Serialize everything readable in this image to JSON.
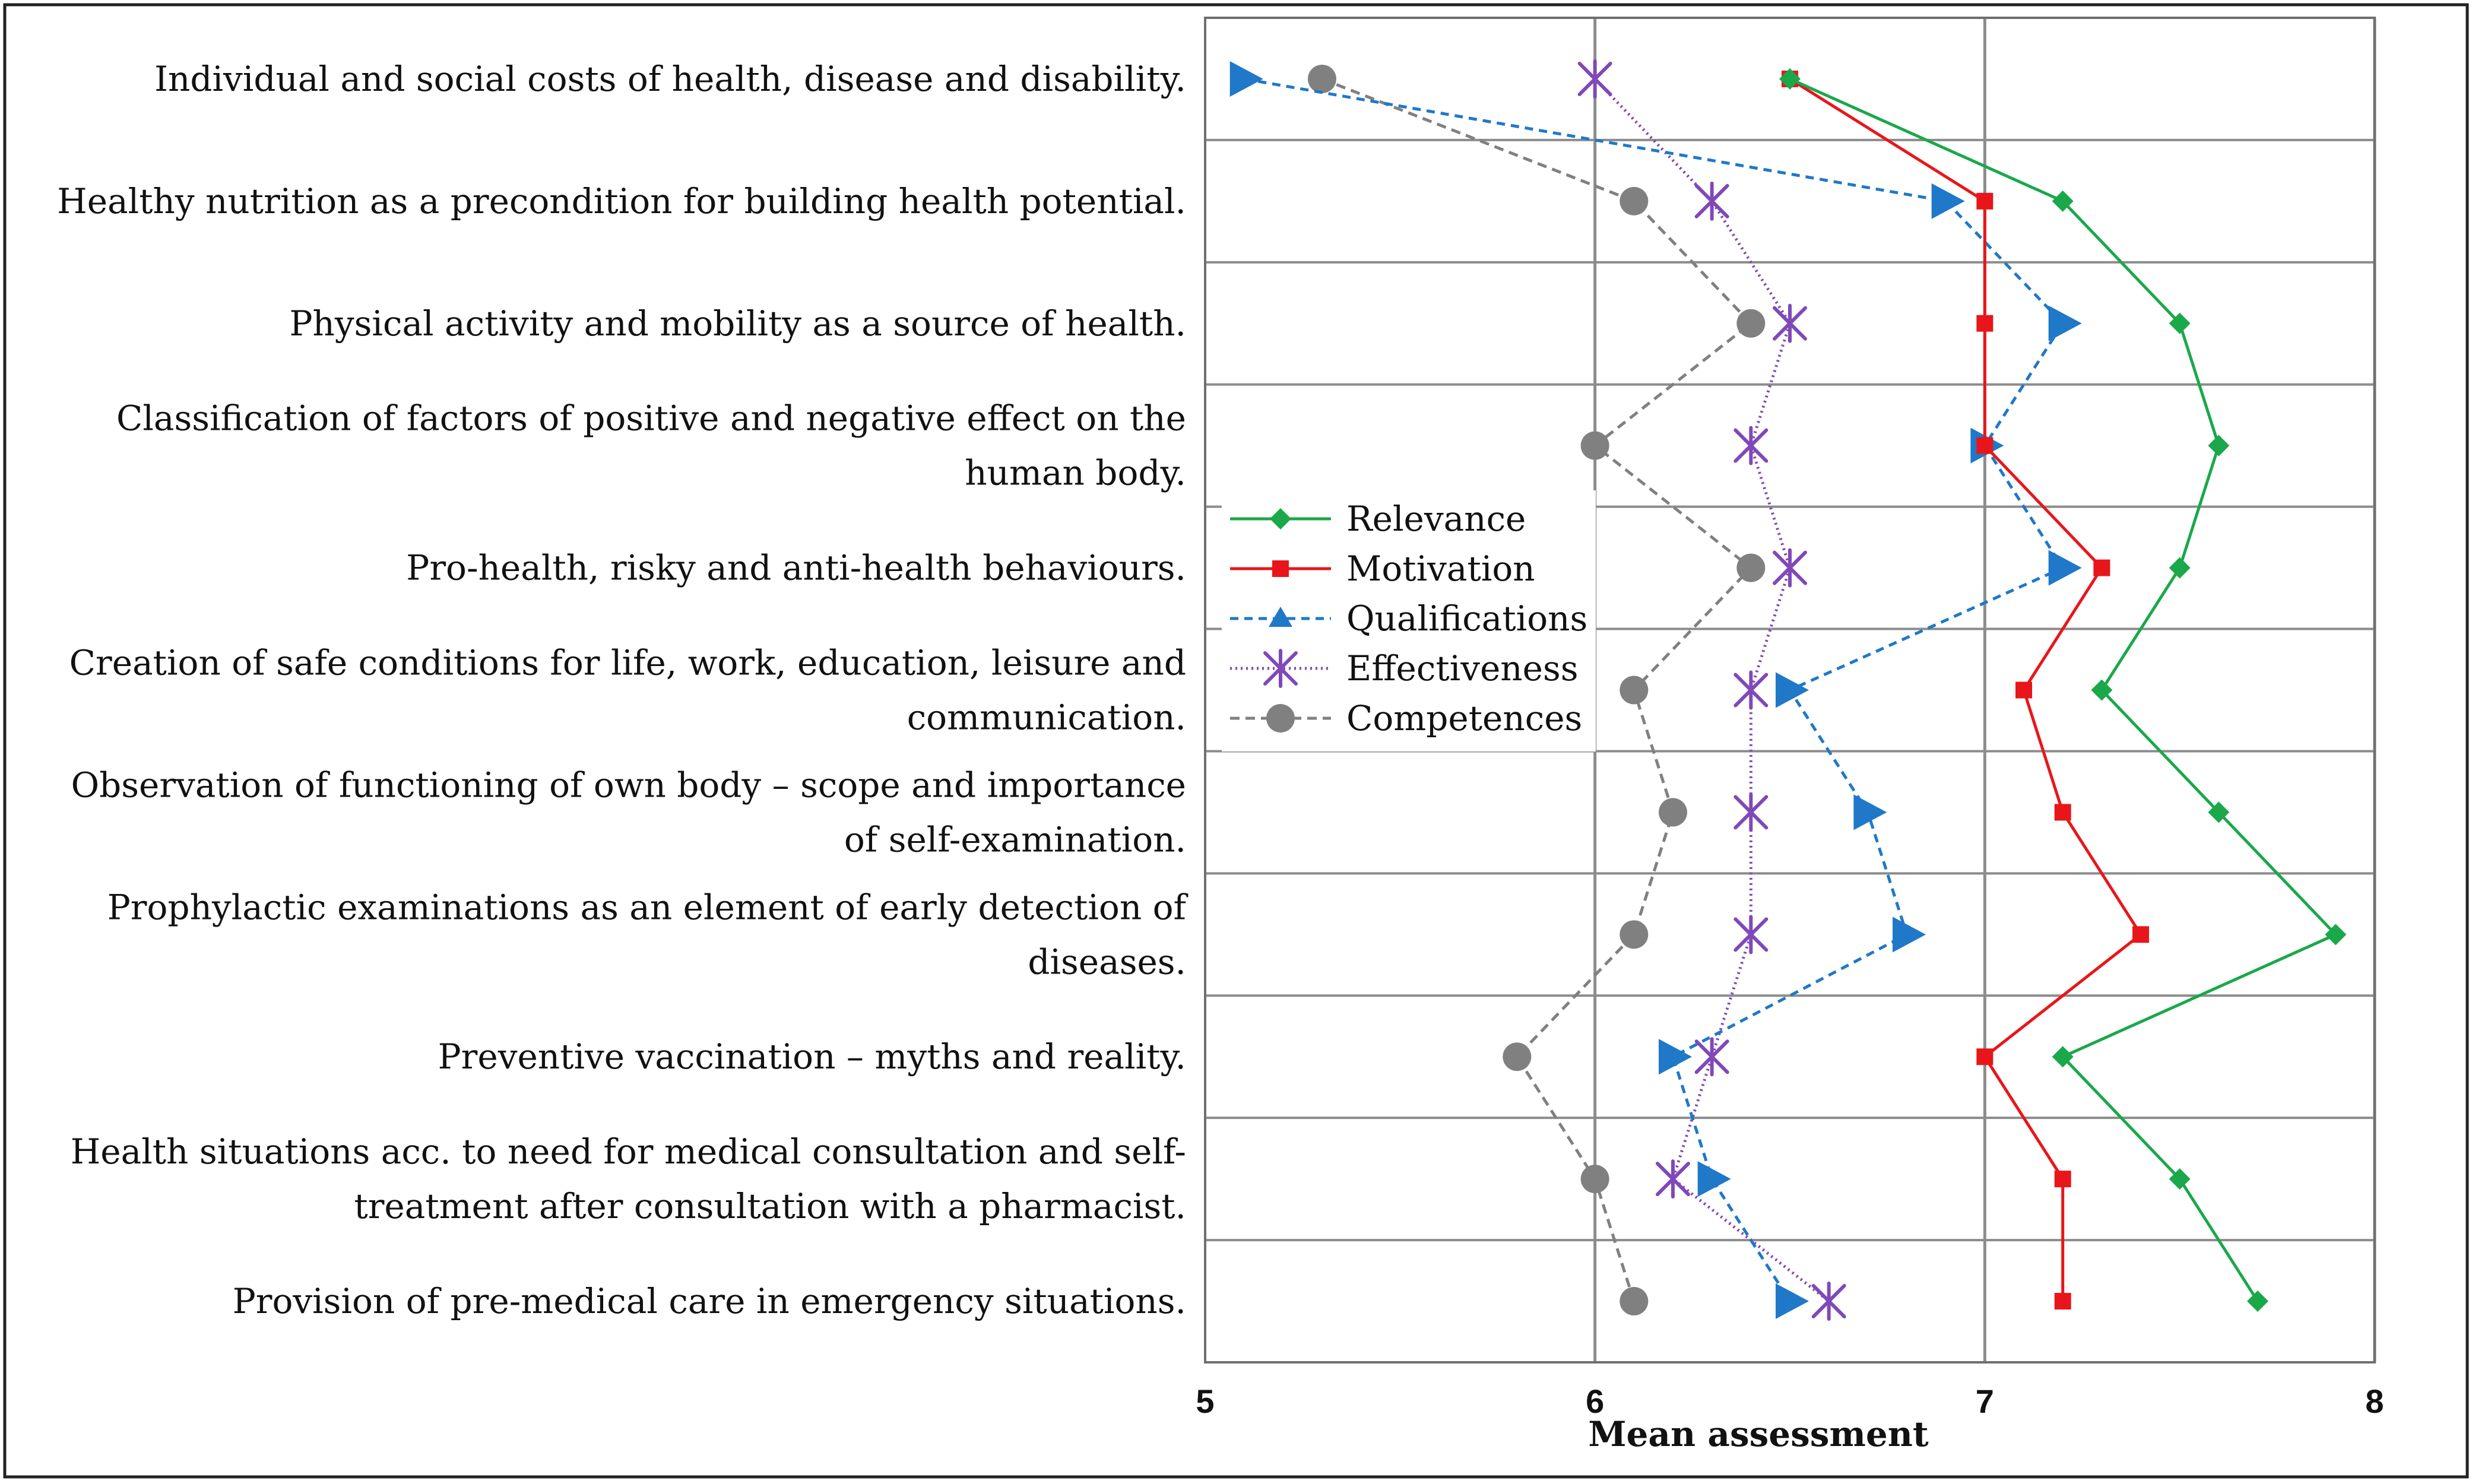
{
  "chart_data": {
    "type": "line",
    "orientation": "horizontal",
    "title": "",
    "xlabel": "Mean assessment",
    "ylabel": "",
    "xlim": [
      5,
      8
    ],
    "x_ticks": [
      "5",
      "6",
      "7",
      "8"
    ],
    "grid": true,
    "legend_position": "center",
    "categories": [
      [
        "Individual and social costs of health, disease and disability."
      ],
      [
        "Healthy nutrition as a precondition for building health potential."
      ],
      [
        "Physical activity and mobility as a source of health."
      ],
      [
        "Classification of factors of positive and negative effect on the",
        "human body."
      ],
      [
        "Pro-health, risky and anti-health behaviours."
      ],
      [
        "Creation of safe conditions for life, work, education, leisure and",
        "communication."
      ],
      [
        "Observation of functioning of own body – scope and importance",
        "of self-examination."
      ],
      [
        "Prophylactic examinations as an element of early detection of",
        "diseases."
      ],
      [
        "Preventive vaccination – myths and reality."
      ],
      [
        "Health situations acc. to need for medical consultation and self-",
        "treatment after consultation with a pharmacist."
      ],
      [
        "Provision of pre-medical care in emergency situations."
      ]
    ],
    "series": [
      {
        "name": "Relevance",
        "color": "#1aa84a",
        "dash": "",
        "marker": "diamond",
        "values": [
          6.5,
          7.2,
          7.5,
          7.6,
          7.5,
          7.3,
          7.6,
          7.9,
          7.2,
          7.5,
          7.7
        ]
      },
      {
        "name": "Motivation",
        "color": "#e8161b",
        "dash": "",
        "marker": "square",
        "values": [
          6.5,
          7.0,
          7.0,
          7.0,
          7.3,
          7.1,
          7.2,
          7.4,
          7.0,
          7.2,
          7.2
        ]
      },
      {
        "name": "Qualifications",
        "color": "#1f78c8",
        "dash": "14,10",
        "marker": "triangle",
        "values": [
          5.1,
          6.9,
          7.2,
          7.0,
          7.2,
          6.5,
          6.7,
          6.8,
          6.2,
          6.3,
          6.5
        ]
      },
      {
        "name": "Effectiveness",
        "color": "#8048b8",
        "dash": "3,6",
        "marker": "asterisk",
        "values": [
          6.0,
          6.3,
          6.5,
          6.4,
          6.5,
          6.4,
          6.4,
          6.4,
          6.3,
          6.2,
          6.6
        ]
      },
      {
        "name": "Competences",
        "color": "#808080",
        "dash": "16,10",
        "marker": "circle",
        "values": [
          5.3,
          6.1,
          6.4,
          6.0,
          6.4,
          6.1,
          6.2,
          6.1,
          5.8,
          6.0,
          6.1
        ]
      }
    ]
  }
}
